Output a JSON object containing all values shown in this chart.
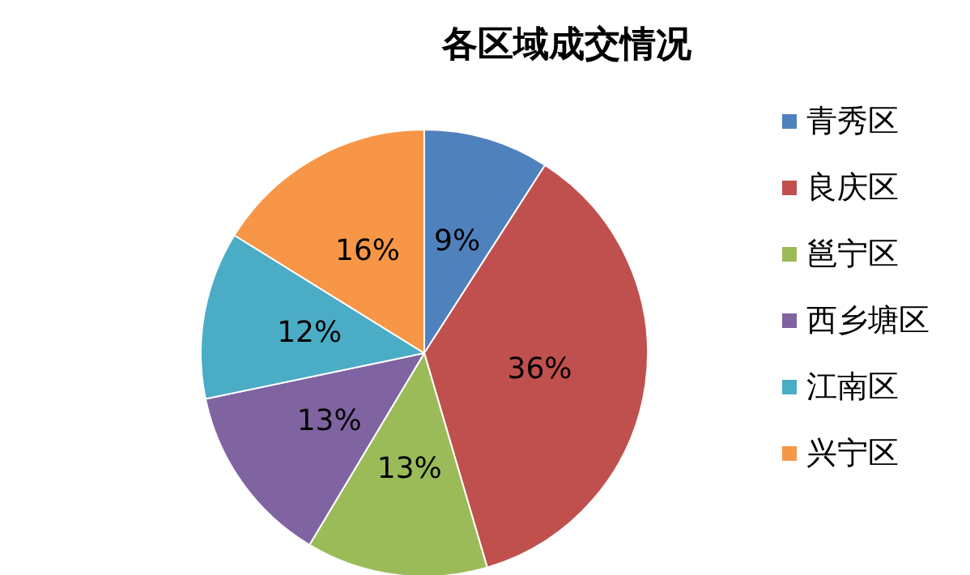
{
  "chart_data": {
    "type": "pie",
    "title": "各区域成交情况",
    "categories": [
      "青秀区",
      "良庆区",
      "邕宁区",
      "西乡塘区",
      "江南区",
      "兴宁区"
    ],
    "values": [
      9,
      36,
      13,
      13,
      12,
      16
    ],
    "colors": [
      "#4f81bd",
      "#c0504d",
      "#9bbb59",
      "#8064a2",
      "#4bacc6",
      "#f79646"
    ],
    "value_labels": [
      "9%",
      "36%",
      "13%",
      "13%",
      "12%",
      "16%"
    ],
    "legend": "right"
  }
}
